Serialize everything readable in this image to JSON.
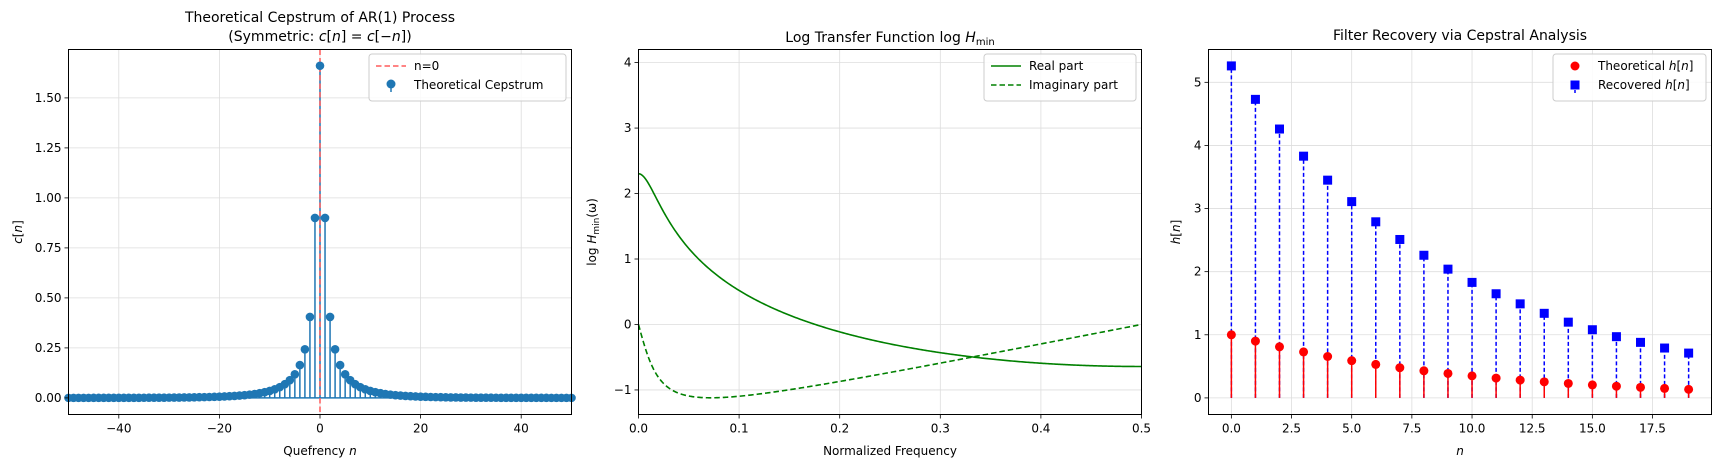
{
  "chart_data": [
    {
      "type": "stem",
      "title_line1": "Theoretical Cepstrum of AR(1) Process",
      "title_line2": "(Symmetric: c[n] = c[−n])",
      "xlabel": "Quefrency n",
      "ylabel": "c[n]",
      "xlim": [
        -50,
        50
      ],
      "ylim": [
        -0.083,
        1.742
      ],
      "xticks": [
        -40,
        -20,
        0,
        20,
        40
      ],
      "xtick_labels": [
        "−40",
        "−20",
        "0",
        "20",
        "40"
      ],
      "yticks": [
        0.0,
        0.25,
        0.5,
        0.75,
        1.0,
        1.25,
        1.5
      ],
      "ytick_labels": [
        "0.00",
        "0.25",
        "0.50",
        "0.75",
        "1.00",
        "1.25",
        "1.50"
      ],
      "grid": true,
      "legend_position": "upper right",
      "legend": [
        "n=0",
        "Theoretical Cepstrum"
      ],
      "vline": {
        "x": 0,
        "label": "n=0",
        "color": "#ff5c5c"
      },
      "series": [
        {
          "name": "Theoretical Cepstrum",
          "color": "#1f77b4",
          "n_range": [
            -50,
            50
          ],
          "c0": 1.6607,
          "formula": "c[n] = 0.9^|n| / |n| for n != 0"
        }
      ]
    },
    {
      "type": "line",
      "title": "Log Transfer Function log H_min",
      "title_text": "Log Transfer Function log ",
      "title_var": "H",
      "title_sub": "min",
      "xlabel": "Normalized Frequency",
      "ylabel_pre": "log ",
      "ylabel_var": "H",
      "ylabel_sub": "min",
      "ylabel_post": "(ω)",
      "xlim": [
        0,
        0.5
      ],
      "ylim": [
        -1.375,
        4.2
      ],
      "xticks": [
        0.0,
        0.1,
        0.2,
        0.3,
        0.4,
        0.5
      ],
      "xtick_labels": [
        "0.0",
        "0.1",
        "0.2",
        "0.3",
        "0.4",
        "0.5"
      ],
      "yticks": [
        -1,
        0,
        1,
        2,
        3,
        4
      ],
      "ytick_labels": [
        "−1",
        "0",
        "1",
        "2",
        "3",
        "4"
      ],
      "grid": true,
      "legend_position": "upper right",
      "series": [
        {
          "name": "Real part",
          "color": "#008000",
          "style": "solid",
          "formula": "-ln|1 - 0.9 e^{-j2πf}|",
          "x_range": [
            0,
            0.5
          ]
        },
        {
          "name": "Imaginary part",
          "color": "#008000",
          "style": "dashed",
          "formula": "-arg(1 - 0.9 e^{-j2πf})",
          "x_range": [
            0,
            0.5
          ]
        }
      ]
    },
    {
      "type": "stem",
      "title": "Filter Recovery via Cepstral Analysis",
      "xlabel": "n",
      "ylabel": "h[n]",
      "xlim": [
        -0.95,
        19.95
      ],
      "ylim": [
        -0.263,
        5.52
      ],
      "xticks": [
        0.0,
        2.5,
        5.0,
        7.5,
        10.0,
        12.5,
        15.0,
        17.5
      ],
      "xtick_labels": [
        "0.0",
        "2.5",
        "5.0",
        "7.5",
        "10.0",
        "12.5",
        "15.0",
        "17.5"
      ],
      "yticks": [
        0,
        1,
        2,
        3,
        4,
        5
      ],
      "ytick_labels": [
        "0",
        "1",
        "2",
        "3",
        "4",
        "5"
      ],
      "grid": true,
      "legend_position": "upper right",
      "x": [
        0,
        1,
        2,
        3,
        4,
        5,
        6,
        7,
        8,
        9,
        10,
        11,
        12,
        13,
        14,
        15,
        16,
        17,
        18,
        19
      ],
      "series": [
        {
          "name": "Theoretical h[n]",
          "color": "#ff0000",
          "marker": "circle",
          "values": [
            1.0,
            0.9,
            0.81,
            0.729,
            0.656,
            0.59,
            0.531,
            0.478,
            0.43,
            0.387,
            0.349,
            0.314,
            0.282,
            0.254,
            0.229,
            0.206,
            0.185,
            0.167,
            0.15,
            0.135
          ]
        },
        {
          "name": "Recovered h[n]",
          "color": "#0000ff",
          "marker": "square",
          "values": [
            5.26,
            4.73,
            4.26,
            3.83,
            3.45,
            3.11,
            2.79,
            2.51,
            2.26,
            2.04,
            1.83,
            1.65,
            1.49,
            1.34,
            1.2,
            1.08,
            0.97,
            0.88,
            0.79,
            0.71
          ]
        }
      ]
    }
  ]
}
